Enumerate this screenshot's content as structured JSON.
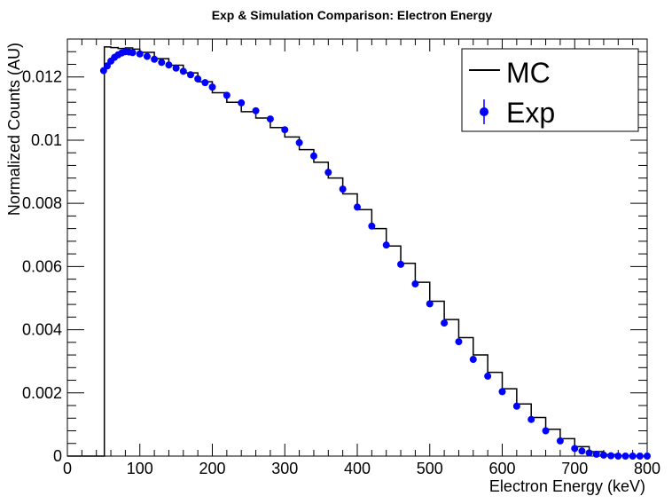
{
  "chart_data": {
    "type": "line",
    "title": "Exp & Simulation Comparison: Electron Energy",
    "xlabel": "Electron Energy (keV)",
    "ylabel": "Normalized Counts (AU)",
    "xlim": [
      0,
      800
    ],
    "ylim": [
      0,
      0.0132
    ],
    "x_ticks": [
      0,
      100,
      200,
      300,
      400,
      500,
      600,
      700,
      800
    ],
    "x_tick_labels": [
      "0",
      "100",
      "200",
      "300",
      "400",
      "500",
      "600",
      "700",
      "800"
    ],
    "y_ticks": [
      0,
      0.002,
      0.004,
      0.006,
      0.008,
      0.01,
      0.012
    ],
    "y_tick_labels": [
      "0",
      "0.002",
      "0.004",
      "0.006",
      "0.008",
      "0.01",
      "0.012"
    ],
    "grid": false,
    "legend_position": "top-right",
    "legend": [
      {
        "label": "MC",
        "style": "line",
        "color": "#000000"
      },
      {
        "label": "Exp",
        "style": "marker",
        "color": "#0000ff"
      }
    ],
    "series": [
      {
        "name": "MC",
        "style": "step",
        "color": "#000000",
        "x": [
          0,
          50,
          51,
          60,
          70,
          80,
          90,
          100,
          120,
          140,
          160,
          180,
          200,
          220,
          240,
          260,
          280,
          300,
          320,
          340,
          360,
          380,
          400,
          420,
          440,
          460,
          480,
          500,
          520,
          540,
          560,
          580,
          600,
          620,
          640,
          660,
          680,
          700,
          720,
          740,
          760,
          780,
          800
        ],
        "y": [
          0,
          0,
          0.01295,
          0.01293,
          0.0129,
          0.01292,
          0.01288,
          0.01278,
          0.01258,
          0.01237,
          0.01213,
          0.01185,
          0.0115,
          0.0112,
          0.0109,
          0.0107,
          0.0104,
          0.0101,
          0.0097,
          0.0093,
          0.0088,
          0.0083,
          0.0078,
          0.0072,
          0.00665,
          0.0061,
          0.0055,
          0.0049,
          0.00432,
          0.00375,
          0.0032,
          0.00265,
          0.00213,
          0.00165,
          0.00122,
          0.00085,
          0.00055,
          0.0003,
          0.00014,
          5e-05,
          1e-05,
          0,
          0
        ]
      },
      {
        "name": "Exp",
        "style": "markers",
        "color": "#0000ff",
        "x": [
          50,
          55,
          60,
          65,
          70,
          75,
          80,
          85,
          90,
          100,
          110,
          120,
          130,
          140,
          150,
          160,
          170,
          180,
          190,
          200,
          220,
          240,
          260,
          280,
          300,
          320,
          340,
          360,
          380,
          400,
          420,
          440,
          460,
          480,
          500,
          520,
          540,
          560,
          580,
          600,
          620,
          640,
          660,
          680,
          700,
          710,
          720,
          730,
          740,
          750,
          760,
          770,
          780,
          790,
          800
        ],
        "y": [
          0.0122,
          0.01235,
          0.0125,
          0.01262,
          0.0127,
          0.01276,
          0.0128,
          0.01279,
          0.01277,
          0.01273,
          0.01265,
          0.01256,
          0.01246,
          0.01238,
          0.01228,
          0.01218,
          0.01207,
          0.01194,
          0.01182,
          0.01168,
          0.01142,
          0.01118,
          0.01093,
          0.01067,
          0.01033,
          0.00992,
          0.0095,
          0.00898,
          0.00845,
          0.00788,
          0.00728,
          0.00668,
          0.00607,
          0.00545,
          0.00482,
          0.00421,
          0.00362,
          0.00306,
          0.00253,
          0.00204,
          0.00158,
          0.00116,
          0.0008,
          0.00048,
          0.00024,
          0.00016,
          0.0001,
          6e-05,
          3e-05,
          1e-05,
          0,
          0,
          0,
          0,
          0
        ]
      }
    ]
  }
}
